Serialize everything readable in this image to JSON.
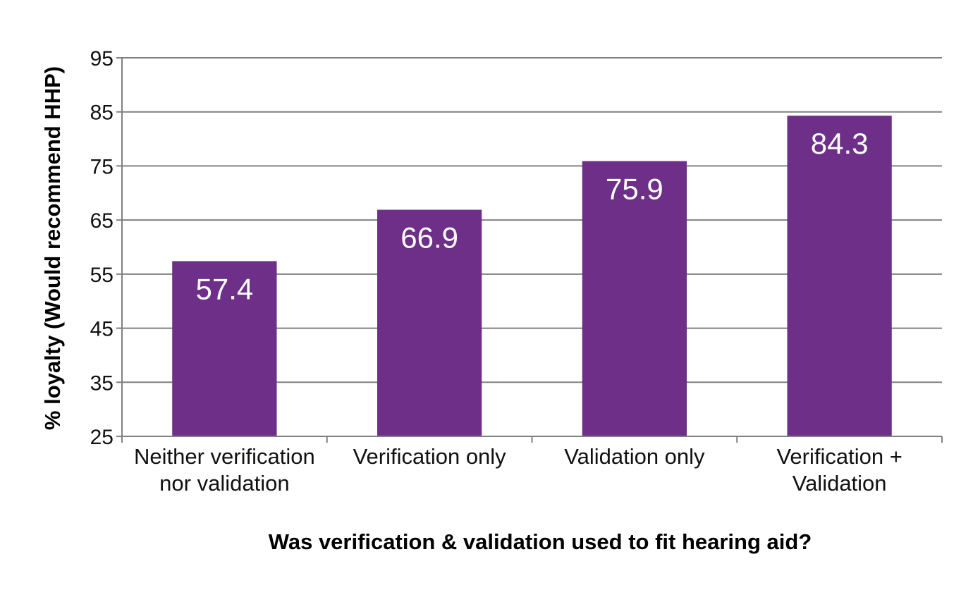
{
  "chart_data": {
    "type": "bar",
    "title": "",
    "xlabel": "Was verification & validation used to fit hearing aid?",
    "ylabel": "% loyalty (Would recommend HHP)",
    "categories": [
      [
        "Neither verification",
        "nor validation"
      ],
      [
        "Verification only"
      ],
      [
        "Validation only"
      ],
      [
        "Verification +",
        "Validation"
      ]
    ],
    "values": [
      57.4,
      66.9,
      75.9,
      84.3
    ],
    "value_labels": [
      "57.4",
      "66.9",
      "75.9",
      "84.3"
    ],
    "ylim": [
      25,
      95
    ],
    "yticks": [
      25,
      35,
      45,
      55,
      65,
      75,
      85,
      95
    ],
    "ytick_labels": [
      "25",
      "35",
      "45",
      "55",
      "65",
      "75",
      "85",
      "95"
    ],
    "grid": true,
    "legend": false,
    "colors": {
      "bar": "#6d2f87",
      "grid": "#808080",
      "value_label": "#ffffff"
    }
  }
}
